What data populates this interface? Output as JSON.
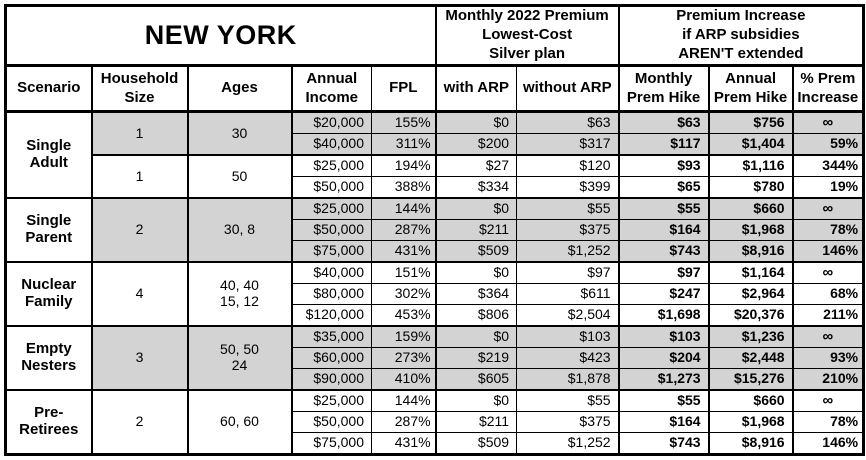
{
  "table": {
    "region_title": "NEW YORK",
    "sections": {
      "premium": "Monthly 2022 Premium\nLowest-Cost\nSilver plan",
      "increase": "Premium Increase\nif ARP subsidies\nAREN'T extended"
    },
    "columns": [
      "Scenario",
      "Household\nSize",
      "Ages",
      "Annual\nIncome",
      "FPL",
      "with ARP",
      "without ARP",
      "Monthly\nPrem Hike",
      "Annual\nPrem Hike",
      "% Prem\nIncrease"
    ],
    "colors": {
      "shaded_block": "#d3d3d3",
      "border": "#000000",
      "text": "#000000",
      "background": "#ffffff"
    },
    "infinity_symbol": "∞",
    "groups": [
      {
        "scenario": "Single\nAdult",
        "subgroups": [
          {
            "household": "1",
            "ages": "30",
            "shaded": true,
            "rows": [
              {
                "income": "$20,000",
                "fpl": "155%",
                "with_arp": "$0",
                "without_arp": "$63",
                "monthly_hike": "$63",
                "annual_hike": "$756",
                "pct_increase": "∞"
              },
              {
                "income": "$40,000",
                "fpl": "311%",
                "with_arp": "$200",
                "without_arp": "$317",
                "monthly_hike": "$117",
                "annual_hike": "$1,404",
                "pct_increase": "59%"
              }
            ]
          },
          {
            "household": "1",
            "ages": "50",
            "shaded": false,
            "rows": [
              {
                "income": "$25,000",
                "fpl": "194%",
                "with_arp": "$27",
                "without_arp": "$120",
                "monthly_hike": "$93",
                "annual_hike": "$1,116",
                "pct_increase": "344%"
              },
              {
                "income": "$50,000",
                "fpl": "388%",
                "with_arp": "$334",
                "without_arp": "$399",
                "monthly_hike": "$65",
                "annual_hike": "$780",
                "pct_increase": "19%"
              }
            ]
          }
        ]
      },
      {
        "scenario": "Single\nParent",
        "subgroups": [
          {
            "household": "2",
            "ages": "30, 8",
            "shaded": true,
            "rows": [
              {
                "income": "$25,000",
                "fpl": "144%",
                "with_arp": "$0",
                "without_arp": "$55",
                "monthly_hike": "$55",
                "annual_hike": "$660",
                "pct_increase": "∞"
              },
              {
                "income": "$50,000",
                "fpl": "287%",
                "with_arp": "$211",
                "without_arp": "$375",
                "monthly_hike": "$164",
                "annual_hike": "$1,968",
                "pct_increase": "78%"
              },
              {
                "income": "$75,000",
                "fpl": "431%",
                "with_arp": "$509",
                "without_arp": "$1,252",
                "monthly_hike": "$743",
                "annual_hike": "$8,916",
                "pct_increase": "146%"
              }
            ]
          }
        ]
      },
      {
        "scenario": "Nuclear\nFamily",
        "subgroups": [
          {
            "household": "4",
            "ages": "40, 40\n15, 12",
            "shaded": false,
            "rows": [
              {
                "income": "$40,000",
                "fpl": "151%",
                "with_arp": "$0",
                "without_arp": "$97",
                "monthly_hike": "$97",
                "annual_hike": "$1,164",
                "pct_increase": "∞"
              },
              {
                "income": "$80,000",
                "fpl": "302%",
                "with_arp": "$364",
                "without_arp": "$611",
                "monthly_hike": "$247",
                "annual_hike": "$2,964",
                "pct_increase": "68%"
              },
              {
                "income": "$120,000",
                "fpl": "453%",
                "with_arp": "$806",
                "without_arp": "$2,504",
                "monthly_hike": "$1,698",
                "annual_hike": "$20,376",
                "pct_increase": "211%"
              }
            ]
          }
        ]
      },
      {
        "scenario": "Empty\nNesters",
        "subgroups": [
          {
            "household": "3",
            "ages": "50, 50\n24",
            "shaded": true,
            "rows": [
              {
                "income": "$35,000",
                "fpl": "159%",
                "with_arp": "$0",
                "without_arp": "$103",
                "monthly_hike": "$103",
                "annual_hike": "$1,236",
                "pct_increase": "∞"
              },
              {
                "income": "$60,000",
                "fpl": "273%",
                "with_arp": "$219",
                "without_arp": "$423",
                "monthly_hike": "$204",
                "annual_hike": "$2,448",
                "pct_increase": "93%"
              },
              {
                "income": "$90,000",
                "fpl": "410%",
                "with_arp": "$605",
                "without_arp": "$1,878",
                "monthly_hike": "$1,273",
                "annual_hike": "$15,276",
                "pct_increase": "210%"
              }
            ]
          }
        ]
      },
      {
        "scenario": "Pre-\nRetirees",
        "subgroups": [
          {
            "household": "2",
            "ages": "60, 60",
            "shaded": false,
            "rows": [
              {
                "income": "$25,000",
                "fpl": "144%",
                "with_arp": "$0",
                "without_arp": "$55",
                "monthly_hike": "$55",
                "annual_hike": "$660",
                "pct_increase": "∞"
              },
              {
                "income": "$50,000",
                "fpl": "287%",
                "with_arp": "$211",
                "without_arp": "$375",
                "monthly_hike": "$164",
                "annual_hike": "$1,968",
                "pct_increase": "78%"
              },
              {
                "income": "$75,000",
                "fpl": "431%",
                "with_arp": "$509",
                "without_arp": "$1,252",
                "monthly_hike": "$743",
                "annual_hike": "$8,916",
                "pct_increase": "146%"
              }
            ]
          }
        ]
      }
    ]
  }
}
